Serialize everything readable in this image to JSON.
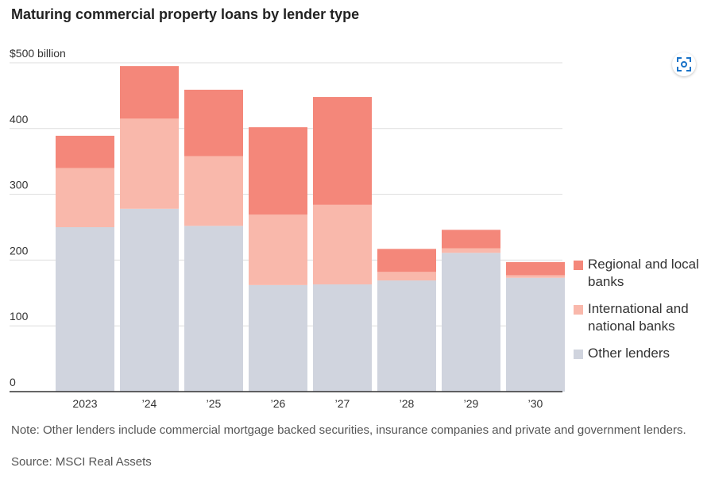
{
  "title": "Maturing commercial property loans by lender type",
  "note": "Note: Other lenders include commercial mortgage backed securities, insurance companies and private and government lenders.",
  "source": "Source: MSCI Real Assets",
  "expand_icon": "expand-icon",
  "colors": {
    "regional": "#f4877a",
    "international": "#f9b8ab",
    "other": "#d0d4de",
    "grid": "#dddddd",
    "axis": "#333333"
  },
  "legend": [
    {
      "key": "regional",
      "label": "Regional and local banks"
    },
    {
      "key": "international",
      "label": "International and national banks"
    },
    {
      "key": "other",
      "label": "Other lenders"
    }
  ],
  "chart_data": {
    "type": "bar",
    "stacked": true,
    "title": "Maturing commercial property loans by lender type",
    "categories": [
      "2023",
      "’24",
      "’25",
      "’26",
      "’27",
      "’28",
      "’29",
      "’30"
    ],
    "series": [
      {
        "name": "Other lenders",
        "key": "other",
        "values": [
          250,
          278,
          252,
          162,
          163,
          169,
          211,
          173
        ]
      },
      {
        "name": "International and national banks",
        "key": "international",
        "values": [
          90,
          137,
          106,
          107,
          121,
          13,
          7,
          4
        ]
      },
      {
        "name": "Regional and local banks",
        "key": "regional",
        "values": [
          49,
          80,
          101,
          133,
          164,
          35,
          28,
          20
        ]
      }
    ],
    "ylim": [
      0,
      500
    ],
    "yticks": [
      0,
      100,
      200,
      300,
      400,
      500
    ],
    "ytick_labels": [
      "0",
      "100",
      "200",
      "300",
      "400",
      "$500 billion"
    ],
    "xlabel": "",
    "ylabel": "",
    "grid": true,
    "legend_position": "right"
  }
}
